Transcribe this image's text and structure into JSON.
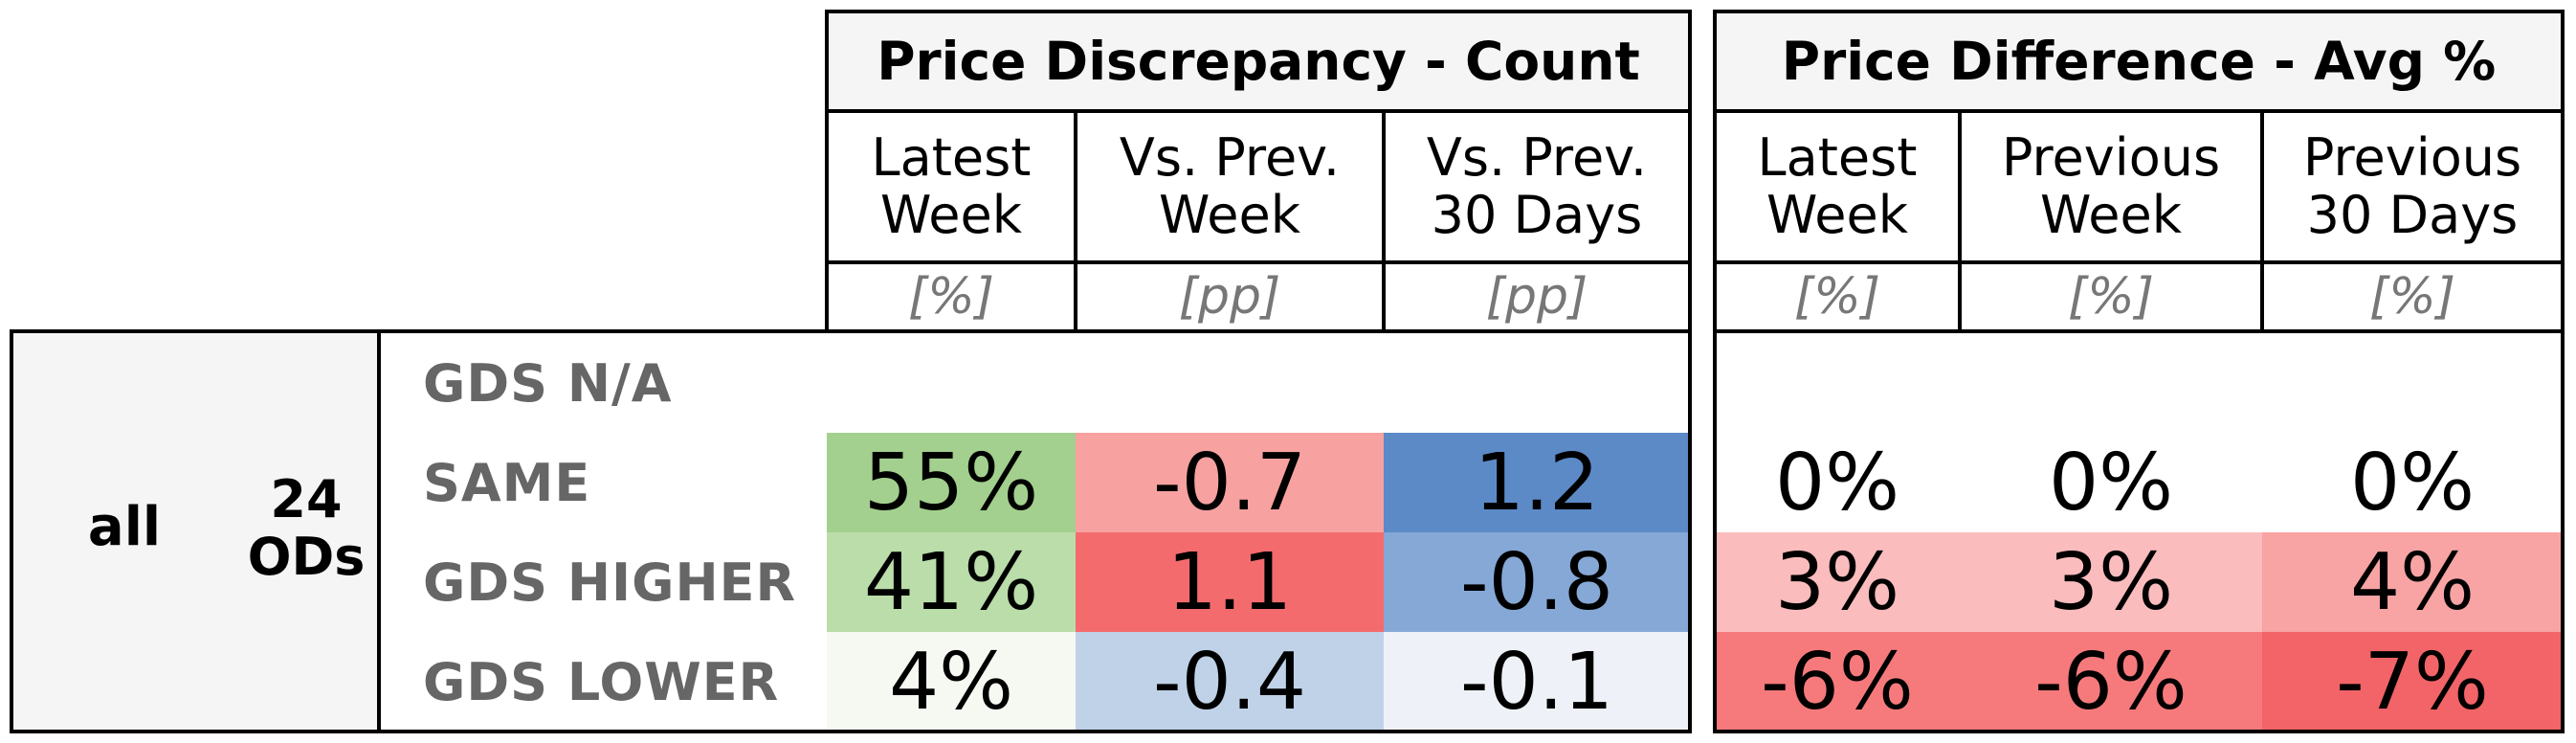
{
  "panel_left": {
    "title": "Price Discrepancy - Count",
    "columns": [
      "Latest\nWeek",
      "Vs. Prev.\nWeek",
      "Vs. Prev.\n30 Days"
    ],
    "units": [
      "[%]",
      "[pp]",
      "[pp]"
    ]
  },
  "panel_right": {
    "title": "Price Difference - Avg %",
    "columns": [
      "Latest\nWeek",
      "Previous\nWeek",
      "Previous\n30 Days"
    ],
    "units": [
      "[%]",
      "[%]",
      "[%]"
    ]
  },
  "group": {
    "label": "all",
    "count": "24\nODs"
  },
  "rows": [
    {
      "label": "GDS N/A",
      "count_values": [
        "",
        "",
        ""
      ],
      "avg_values": [
        "",
        "",
        ""
      ]
    },
    {
      "label": "SAME",
      "count_values": [
        "55%",
        "-0.7",
        "1.2"
      ],
      "avg_values": [
        "0%",
        "0%",
        "0%"
      ]
    },
    {
      "label": "GDS HIGHER",
      "count_values": [
        "41%",
        "1.1",
        "-0.8"
      ],
      "avg_values": [
        "3%",
        "3%",
        "4%"
      ]
    },
    {
      "label": "GDS LOWER",
      "count_values": [
        "4%",
        "-0.4",
        "-0.1"
      ],
      "avg_values": [
        "-6%",
        "-6%",
        "-7%"
      ]
    }
  ],
  "colors": {
    "count": [
      [
        "#ffffff",
        "#ffffff",
        "#ffffff"
      ],
      [
        "#a3d08e",
        "#f7a1a1",
        "#5b8ac7"
      ],
      [
        "#badda9",
        "#f46b6e",
        "#85a8d6"
      ],
      [
        "#f5f9f2",
        "#c0d2e8",
        "#eef2f8"
      ]
    ],
    "avg": [
      [
        "#ffffff",
        "#ffffff",
        "#ffffff"
      ],
      [
        "#ffffff",
        "#ffffff",
        "#ffffff"
      ],
      [
        "#fbbcbd",
        "#fbbcbd",
        "#f8a3a4"
      ],
      [
        "#f67a7c",
        "#f67a7c",
        "#f26467"
      ]
    ]
  }
}
